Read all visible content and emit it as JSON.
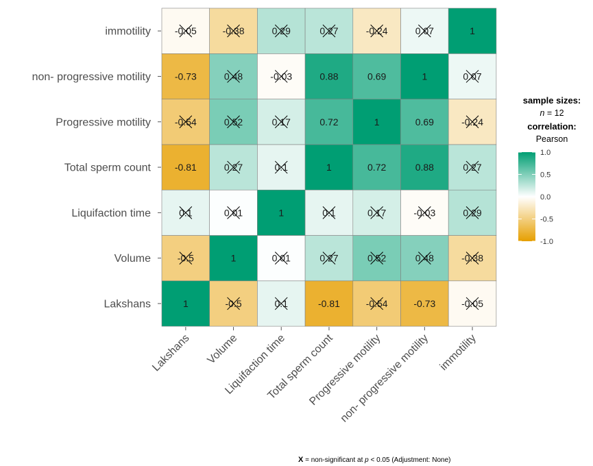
{
  "chart_data": {
    "type": "heatmap",
    "x_categories": [
      "Lakshans",
      "Volume",
      "Liquifaction time",
      "Total sperm count",
      "Progressive motility",
      "non- progressive motility",
      "immotility"
    ],
    "y_categories_bottom_to_top": [
      "Lakshans",
      "Volume",
      "Liquifaction time",
      "Total sperm count",
      "Progressive motility",
      "non- progressive motility",
      "immotility"
    ],
    "matrix": [
      [
        1,
        -0.5,
        0.1,
        -0.81,
        -0.54,
        -0.73,
        -0.05
      ],
      [
        -0.5,
        1,
        0.01,
        0.27,
        0.52,
        0.48,
        -0.38
      ],
      [
        0.1,
        0.01,
        1,
        0.1,
        0.17,
        -0.03,
        0.29
      ],
      [
        -0.81,
        0.27,
        0.1,
        1,
        0.72,
        0.88,
        0.27
      ],
      [
        -0.54,
        0.52,
        0.17,
        0.72,
        1,
        0.69,
        -0.24
      ],
      [
        -0.73,
        0.48,
        -0.03,
        0.88,
        0.69,
        1,
        0.07
      ],
      [
        -0.05,
        -0.38,
        0.29,
        0.27,
        -0.24,
        0.07,
        1
      ]
    ],
    "labels": [
      [
        "1",
        "-0.5",
        "0.1",
        "-0.81",
        "-0.54",
        "-0.73",
        "-0.05"
      ],
      [
        "-0.5",
        "1",
        "0.01",
        "0.27",
        "0.52",
        "0.48",
        "-0.38"
      ],
      [
        "0.1",
        "0.01",
        "1",
        "0.1",
        "0.17",
        "-0.03",
        "0.29"
      ],
      [
        "-0.81",
        "0.27",
        "0.1",
        "1",
        "0.72",
        "0.88",
        "0.27"
      ],
      [
        "-0.54",
        "0.52",
        "0.17",
        "0.72",
        "1",
        "0.69",
        "-0.24"
      ],
      [
        "-0.73",
        "0.48",
        "-0.03",
        "0.88",
        "0.69",
        "1",
        "0.07"
      ],
      [
        "-0.05",
        "-0.38",
        "0.29",
        "0.27",
        "-0.24",
        "0.07",
        "1"
      ]
    ],
    "nonsignificant": [
      [
        false,
        true,
        true,
        false,
        true,
        false,
        true
      ],
      [
        true,
        false,
        true,
        true,
        true,
        true,
        true
      ],
      [
        true,
        true,
        false,
        true,
        true,
        true,
        true
      ],
      [
        false,
        true,
        true,
        false,
        false,
        false,
        true
      ],
      [
        true,
        true,
        true,
        false,
        false,
        false,
        true
      ],
      [
        false,
        true,
        true,
        false,
        false,
        false,
        true
      ],
      [
        true,
        true,
        true,
        true,
        true,
        true,
        false
      ]
    ],
    "color_scale": {
      "low": "#e69f00",
      "mid": "#ffffff",
      "high": "#009e73",
      "limits": [
        -1,
        1
      ],
      "grid_color": "#808080"
    },
    "legend": {
      "title_line1": "sample sizes:",
      "n_prefix": "n",
      "n_suffix": " = 12",
      "title_line2": "correlation:",
      "title_line3": "Pearson",
      "ticks": [
        "1.0",
        "0.5",
        "0.0",
        "-0.5",
        "-1.0"
      ],
      "tick_values": [
        1,
        0.5,
        0,
        -0.5,
        -1
      ],
      "placement": "right"
    },
    "caption": {
      "symbol": "X",
      "text_before_p": " = non-significant at ",
      "p_symbol": "p",
      "text_after_p": " < 0.05 (Adjustment: None)"
    }
  }
}
